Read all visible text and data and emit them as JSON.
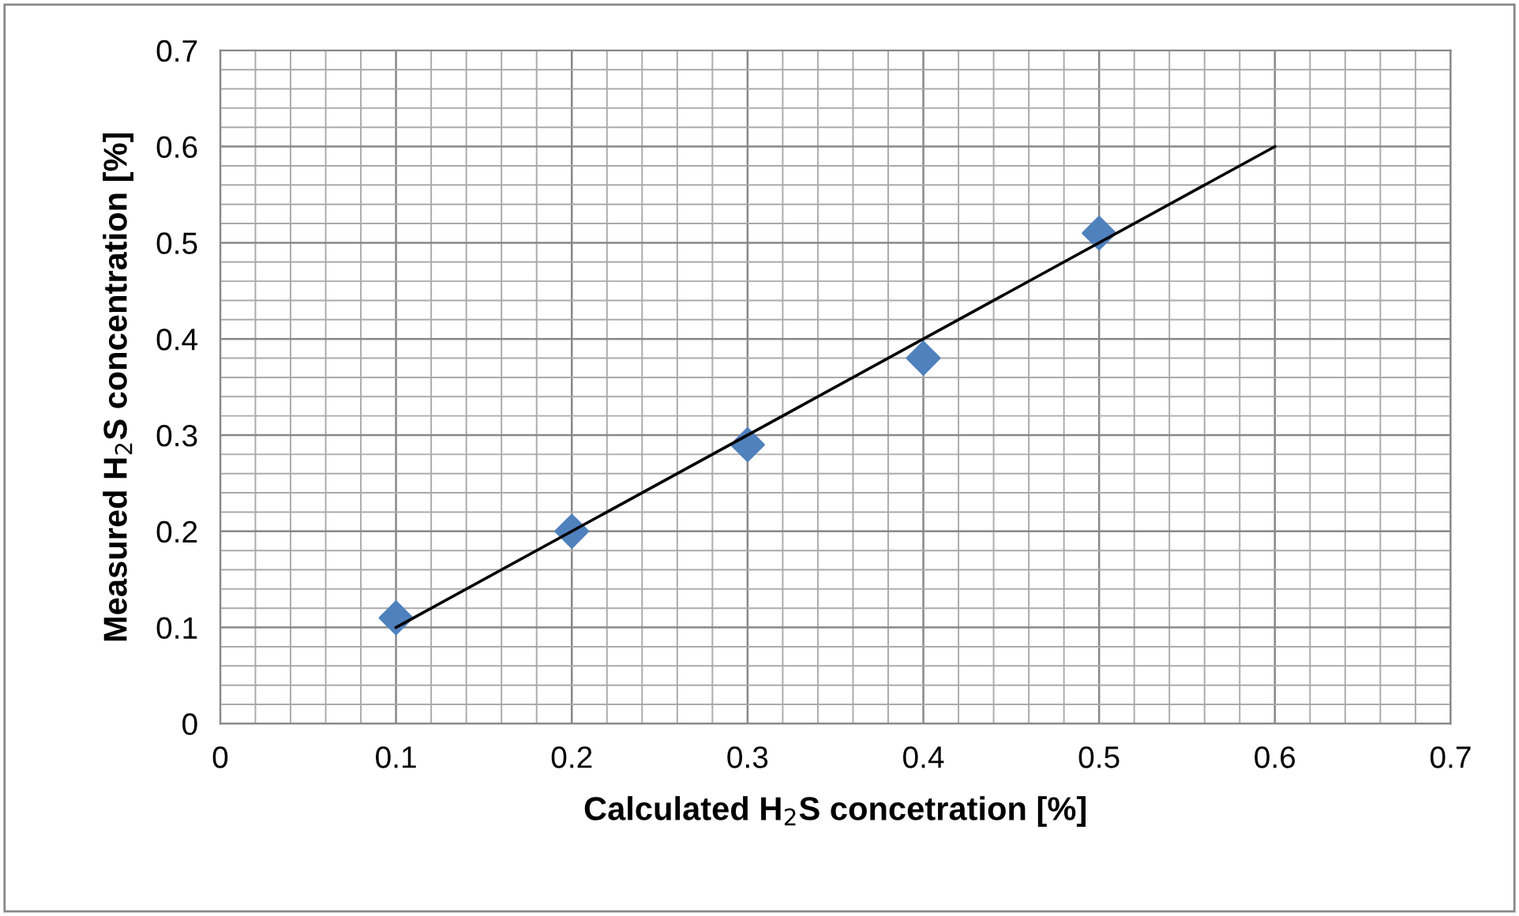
{
  "chart_data": {
    "type": "scatter",
    "xlabel": "Calculated H$_{2}$S concetration [%]",
    "ylabel": "Measured H$_{2}$S concentration [%]",
    "x": [
      0.1,
      0.2,
      0.3,
      0.4,
      0.5
    ],
    "series": [
      {
        "color": "#4f81bd",
        "marker": "diamond",
        "values": [
          0.11,
          0.2,
          0.29,
          0.38,
          0.51
        ]
      },
      {
        "type": "line",
        "color": "#000000",
        "x": [
          0.1,
          0.6
        ],
        "values": [
          0.1,
          0.6
        ],
        "marker": "none",
        "line_style": "solid"
      }
    ],
    "xlim": [
      0,
      0.7
    ],
    "ylim": [
      0,
      0.7
    ],
    "xticks": [
      0,
      0.1,
      0.2,
      0.3,
      0.4,
      0.5,
      0.6,
      0.7
    ],
    "yticks": [
      0,
      0.1,
      0.2,
      0.3,
      0.4,
      0.5,
      0.6,
      0.7
    ],
    "grid": true,
    "legend": false
  }
}
